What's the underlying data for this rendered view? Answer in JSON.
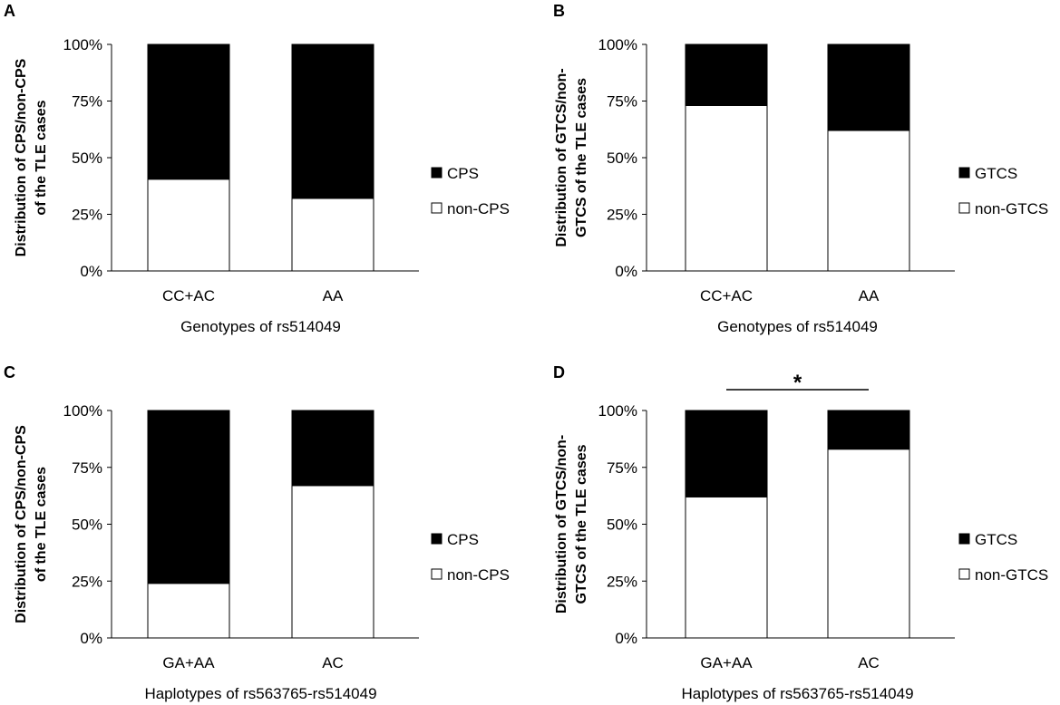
{
  "chart_data": [
    {
      "panel": "A",
      "type": "bar",
      "stacked": true,
      "categories": [
        "CC+AC",
        "AA"
      ],
      "series": [
        {
          "name": "CPS",
          "color": "#000000",
          "values": [
            59.5,
            68
          ]
        },
        {
          "name": "non-CPS",
          "color": "#ffffff",
          "values": [
            40.5,
            32
          ]
        }
      ],
      "ylabel_lines": [
        "Distribution of CPS/non-CPS",
        "of the TLE cases"
      ],
      "xlabel": "Genotypes of rs514049",
      "yticks": [
        "0%",
        "25%",
        "50%",
        "75%",
        "100%"
      ],
      "ylim": [
        0,
        100
      ],
      "significance": null
    },
    {
      "panel": "B",
      "type": "bar",
      "stacked": true,
      "categories": [
        "CC+AC",
        "AA"
      ],
      "series": [
        {
          "name": "GTCS",
          "color": "#000000",
          "values": [
            27,
            38
          ]
        },
        {
          "name": "non-GTCS",
          "color": "#ffffff",
          "values": [
            73,
            62
          ]
        }
      ],
      "ylabel_lines": [
        "Distribution of GTCS/non-",
        "GTCS of the TLE cases"
      ],
      "xlabel": "Genotypes of rs514049",
      "yticks": [
        "0%",
        "25%",
        "50%",
        "75%",
        "100%"
      ],
      "ylim": [
        0,
        100
      ],
      "significance": null
    },
    {
      "panel": "C",
      "type": "bar",
      "stacked": true,
      "categories": [
        "GA+AA",
        "AC"
      ],
      "series": [
        {
          "name": "CPS",
          "color": "#000000",
          "values": [
            76,
            33
          ]
        },
        {
          "name": "non-CPS",
          "color": "#ffffff",
          "values": [
            24,
            67
          ]
        }
      ],
      "ylabel_lines": [
        "Distribution of CPS/non-CPS",
        "of the TLE cases"
      ],
      "xlabel": "Haplotypes of rs563765-rs514049",
      "yticks": [
        "0%",
        "25%",
        "50%",
        "75%",
        "100%"
      ],
      "ylim": [
        0,
        100
      ],
      "significance": null
    },
    {
      "panel": "D",
      "type": "bar",
      "stacked": true,
      "categories": [
        "GA+AA",
        "AC"
      ],
      "series": [
        {
          "name": "GTCS",
          "color": "#000000",
          "values": [
            38,
            17
          ]
        },
        {
          "name": "non-GTCS",
          "color": "#ffffff",
          "values": [
            62,
            83
          ]
        }
      ],
      "ylabel_lines": [
        "Distribution of GTCS/non-",
        "GTCS  of the TLE cases"
      ],
      "xlabel": "Haplotypes of rs563765-rs514049",
      "yticks": [
        "0%",
        "25%",
        "50%",
        "75%",
        "100%"
      ],
      "ylim": [
        0,
        100
      ],
      "significance": "*"
    }
  ]
}
